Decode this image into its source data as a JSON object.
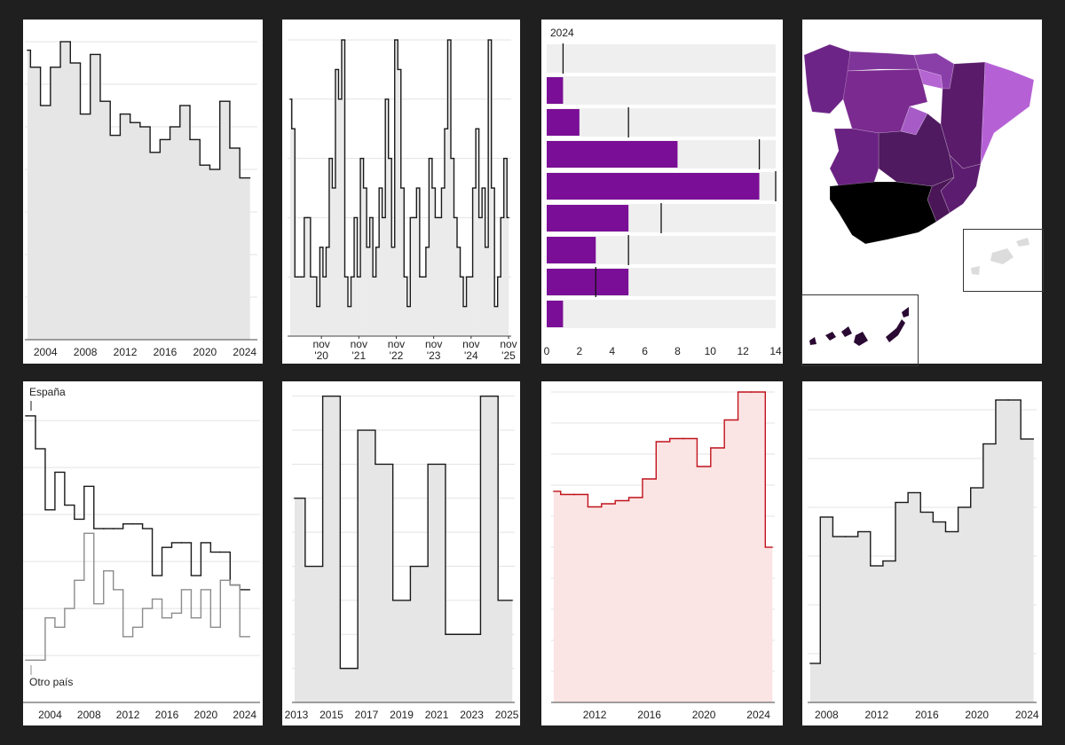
{
  "chart_data": [
    {
      "type": "step",
      "x": [
        2002,
        2003,
        2004,
        2005,
        2006,
        2007,
        2008,
        2009,
        2010,
        2011,
        2012,
        2013,
        2014,
        2015,
        2016,
        2017,
        2018,
        2019,
        2020,
        2021,
        2022,
        2023,
        2024
      ],
      "series": [
        {
          "color": "#1a1a1a",
          "values": [
            6.8,
            6.4,
            5.5,
            6.4,
            7.0,
            6.5,
            5.3,
            6.7,
            5.6,
            4.8,
            5.3,
            5.1,
            5.0,
            4.4,
            4.7,
            5.0,
            5.5,
            4.7,
            4.1,
            4.0,
            5.6,
            4.5,
            3.8
          ]
        }
      ],
      "fill": "#e6e6e6",
      "xlim": [
        2002.2,
        2025
      ],
      "xticks": [
        2004,
        2008,
        2012,
        2016,
        2020,
        2024
      ],
      "ylim": [
        0,
        7.25
      ],
      "yticks": [
        1,
        2,
        3,
        4,
        5,
        6,
        7
      ],
      "grid": true
    },
    {
      "type": "step",
      "x": [
        "2020-01",
        "2020-02",
        "2020-03",
        "2020-04",
        "2020-05",
        "2020-06",
        "2020-07",
        "2020-08",
        "2020-09",
        "2020-10",
        "2020-11",
        "2020-12",
        "2021-01",
        "2021-02",
        "2021-03",
        "2021-04",
        "2021-05",
        "2021-06",
        "2021-07",
        "2021-08",
        "2021-09",
        "2021-10",
        "2021-11",
        "2021-12",
        "2022-01",
        "2022-02",
        "2022-03",
        "2022-04",
        "2022-05",
        "2022-06",
        "2022-07",
        "2022-08",
        "2022-09",
        "2022-10",
        "2022-11",
        "2022-12",
        "2023-01",
        "2023-02",
        "2023-03",
        "2023-04",
        "2023-05",
        "2023-06",
        "2023-07",
        "2023-08",
        "2023-09",
        "2023-10",
        "2023-11",
        "2023-12",
        "2024-01",
        "2024-02",
        "2024-03",
        "2024-04",
        "2024-05",
        "2024-06",
        "2024-07",
        "2024-08",
        "2024-09",
        "2024-10",
        "2024-11",
        "2024-12",
        "2025-01",
        "2025-02",
        "2025-03",
        "2025-04",
        "2025-05",
        "2025-06",
        "2025-07",
        "2025-08",
        "2025-09",
        "2025-10",
        "2025-11"
      ],
      "series": [
        {
          "color": "#1a1a1a",
          "values": [
            8,
            7,
            2,
            2,
            2,
            4,
            4,
            2,
            2,
            1,
            3,
            2,
            3,
            6,
            5,
            9,
            8,
            10,
            2,
            1,
            2,
            4,
            2,
            6,
            5,
            3,
            4,
            2,
            3,
            5,
            4,
            8,
            6,
            3,
            10,
            9,
            5,
            2,
            1,
            4,
            4,
            5,
            2,
            2,
            3,
            6,
            5,
            4,
            4,
            5,
            7,
            10,
            6,
            4,
            3,
            2,
            1,
            2,
            2,
            5,
            7,
            4,
            5,
            3,
            10,
            5,
            1,
            2,
            4,
            6,
            4
          ]
        }
      ],
      "fill": "#ebebeb",
      "xlim": [
        "2020-01",
        "2025-11"
      ],
      "xticks": [
        {
          "value": "2020-11",
          "label": "nov '20"
        },
        {
          "value": "2021-11",
          "label": "nov '21"
        },
        {
          "value": "2022-11",
          "label": "nov '22"
        },
        {
          "value": "2023-11",
          "label": "nov '23"
        },
        {
          "value": "2024-11",
          "label": "nov '24"
        },
        {
          "value": "2025-11",
          "label": "nov '25"
        }
      ],
      "ylim": [
        0,
        10
      ],
      "yticks": [
        2,
        4,
        6,
        8,
        10
      ],
      "grid": true
    },
    {
      "type": "hbar",
      "categories": [
        null,
        null,
        null,
        null,
        null,
        null,
        null,
        null,
        null
      ],
      "series": [
        {
          "name": "2024",
          "color": "#7a0e96",
          "values": [
            0,
            1,
            2,
            8,
            13,
            5,
            3,
            5,
            1
          ]
        },
        {
          "color": "#111111",
          "style": "tick",
          "values": [
            1,
            null,
            5,
            13,
            14,
            7,
            5,
            3,
            null
          ]
        }
      ],
      "xlim": [
        0,
        14
      ],
      "xticks": [
        0,
        2,
        4,
        6,
        8,
        10,
        12,
        14
      ]
    },
    {
      "type": "step",
      "x": [
        2002,
        2003,
        2004,
        2005,
        2006,
        2007,
        2008,
        2009,
        2010,
        2011,
        2012,
        2013,
        2014,
        2015,
        2016,
        2017,
        2018,
        2019,
        2020,
        2021,
        2022,
        2023,
        2024
      ],
      "series": [
        {
          "name": "España",
          "color": "#1a1a1a",
          "values": [
            6.1,
            5.4,
            4.1,
            4.9,
            4.2,
            3.9,
            4.6,
            3.7,
            3.7,
            3.7,
            3.8,
            3.8,
            3.7,
            2.7,
            3.3,
            3.4,
            3.4,
            2.7,
            3.4,
            3.2,
            3.2,
            2.5,
            2.4
          ]
        },
        {
          "name": "Otro país",
          "color": "#8c8c8c",
          "values": [
            0.9,
            0.9,
            1.8,
            1.6,
            2.0,
            2.6,
            3.6,
            2.1,
            2.8,
            2.4,
            1.4,
            1.6,
            2.0,
            2.2,
            1.8,
            1.9,
            2.4,
            1.8,
            2.4,
            1.6,
            2.6,
            2.5,
            1.4
          ]
        }
      ],
      "xlim": [
        2001.5,
        2025.3
      ],
      "xticks": [
        2004,
        2008,
        2012,
        2016,
        2020,
        2024
      ],
      "ylim": [
        0,
        6.4
      ],
      "yticks": [
        1,
        2,
        3,
        4,
        5,
        6
      ],
      "grid": true
    },
    {
      "type": "step",
      "x": [
        2013,
        2014,
        2015,
        2016,
        2017,
        2018,
        2019,
        2020,
        2021,
        2022,
        2023,
        2024,
        2025
      ],
      "series": [
        {
          "color": "#1a1a1a",
          "values": [
            6,
            4,
            9,
            1,
            8,
            7,
            3,
            4,
            7,
            2,
            2,
            9,
            3
          ]
        }
      ],
      "fill": "#e6e6e6",
      "xlim": [
        2012.9,
        2025.3
      ],
      "xticks": [
        2013,
        2015,
        2017,
        2019,
        2021,
        2023,
        2025
      ],
      "ylim": [
        0,
        9.2
      ],
      "yticks": [
        1,
        2,
        3,
        4,
        5,
        6,
        7,
        8,
        9
      ],
      "grid": true
    },
    {
      "type": "step",
      "x": [
        2009,
        2010,
        2011,
        2012,
        2013,
        2014,
        2015,
        2016,
        2017,
        2018,
        2019,
        2020,
        2021,
        2022,
        2023,
        2024,
        2025
      ],
      "series": [
        {
          "color": "#c0121b",
          "values": [
            6.8,
            6.7,
            6.7,
            6.3,
            6.4,
            6.5,
            6.6,
            7.2,
            8.4,
            8.5,
            8.5,
            7.6,
            8.2,
            9.1,
            10.0,
            10.0,
            5.0
          ]
        }
      ],
      "fill": "#fbe4e4",
      "xlim": [
        2009,
        2025
      ],
      "xticks": [
        2012,
        2016,
        2020,
        2024
      ],
      "ylim": [
        0,
        10.1
      ],
      "yticks": [
        1,
        2,
        3,
        4,
        5,
        6,
        7,
        8,
        9,
        10
      ],
      "grid": true
    },
    {
      "type": "step",
      "x": [
        2007,
        2008,
        2009,
        2010,
        2011,
        2012,
        2013,
        2014,
        2015,
        2016,
        2017,
        2018,
        2019,
        2020,
        2021,
        2022,
        2023,
        2024
      ],
      "series": [
        {
          "color": "#1a1a1a",
          "values": [
            0.8,
            3.8,
            3.4,
            3.4,
            3.5,
            2.8,
            2.9,
            4.1,
            4.3,
            3.9,
            3.7,
            3.5,
            4.0,
            4.4,
            5.3,
            6.2,
            6.2,
            5.4
          ]
        }
      ],
      "fill": "#e6e6e6",
      "xlim": [
        2006.7,
        2024.55
      ],
      "xticks": [
        2008,
        2012,
        2016,
        2020,
        2024
      ],
      "ylim": [
        0,
        6.4
      ],
      "yticks": [
        1,
        2,
        3,
        4,
        5,
        6
      ],
      "grid": true
    }
  ]
}
